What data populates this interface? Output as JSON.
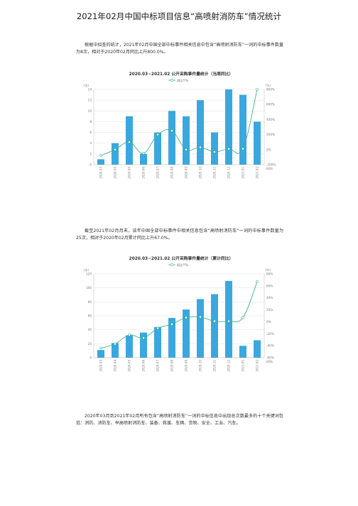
{
  "doc": {
    "title": "2021年02月中国中标项目信息“高喷射消防车”情况统计",
    "paragraph1": "根据中招查的统计，2021年02月中国全部中标事件相关信息中包含“高喷射消防车”一词的中标事件数量为8次，相对于2020年02月同比上升800.0%。",
    "paragraph2": "截至2021年02月月末，该年中国全部中标事件中相关信息包含“高喷射消防车”一词的中标事件数量为25次，相对于2020年02月累计同比上升67.0%。",
    "paragraph3": "2020年03月到2021年02月所有包含“高喷射消防车”一词的中标信息中出现总次数最多的十个关键词包括：消防、消防车、举高喷射消防车、装备、救援、车辆、货物、安全、工业、汽车。"
  },
  "colors": {
    "bar": "#3aa7de",
    "line": "#3cb58e",
    "grid": "#e2e2e2",
    "axis_text": "#777777"
  },
  "chart_data": [
    {
      "type": "bar",
      "title": "2020.03~2021.02 公开采购事件量统计（当周同比）",
      "legend": [
        "同比??%"
      ],
      "legend_position": "top-center",
      "ylabel_left": "(次)",
      "ylabel_right": "(%)",
      "x_unit": "(时间)",
      "categories": [
        "2020-03",
        "2020-04",
        "2020-05",
        "2020-06",
        "2020-07",
        "2020-08",
        "2020-09",
        "2020-10",
        "2020-11",
        "2020-12",
        "2021-01",
        "2021-02"
      ],
      "left_ticks": [
        "0",
        "2",
        "4",
        "6",
        "8",
        "10",
        "12",
        "14"
      ],
      "right_ticks": [
        "-200%",
        "0%",
        "200%",
        "400%",
        "600%",
        "800%"
      ],
      "ylim_left": [
        0,
        14
      ],
      "ylim_right": [
        -200,
        800
      ],
      "series": [
        {
          "kind": "bar",
          "values": [
            1,
            4,
            9,
            2,
            6,
            10,
            9,
            12,
            6,
            14,
            13,
            8
          ]
        },
        {
          "kind": "line",
          "values": [
            -80,
            0,
            100,
            -50,
            200,
            250,
            0,
            30,
            -30,
            10,
            10,
            800
          ]
        }
      ],
      "grid": true
    },
    {
      "type": "bar",
      "title": "2020.03~2021.02 公开采购事件量统计（累计同比）",
      "legend": [
        "同比??%"
      ],
      "legend_position": "top-center",
      "ylabel_left": "(次)",
      "ylabel_right": "(%)",
      "x_unit": "(时间)",
      "categories": [
        "2020-03",
        "2020-04",
        "2020-05",
        "2020-06",
        "2020-07",
        "2020-08",
        "2020-09",
        "2020-10",
        "2020-11",
        "2020-12",
        "2021-01",
        "2021-02"
      ],
      "left_ticks": [
        "0",
        "20",
        "40",
        "60",
        "80",
        "100",
        "120"
      ],
      "right_ticks": [
        "-60%",
        "-40%",
        "-20%",
        "0%",
        "20%",
        "40%",
        "60%",
        "80%"
      ],
      "ylim_left": [
        0,
        120
      ],
      "ylim_right": [
        -60,
        80
      ],
      "series": [
        {
          "kind": "bar",
          "values": [
            11,
            21,
            32,
            36,
            44,
            57,
            69,
            84,
            91,
            110,
            17,
            25
          ]
        },
        {
          "kind": "line",
          "values": [
            -44,
            -37,
            -22,
            -27,
            -11,
            -4,
            7,
            8,
            1,
            1,
            7,
            67
          ]
        }
      ],
      "grid": true
    }
  ]
}
